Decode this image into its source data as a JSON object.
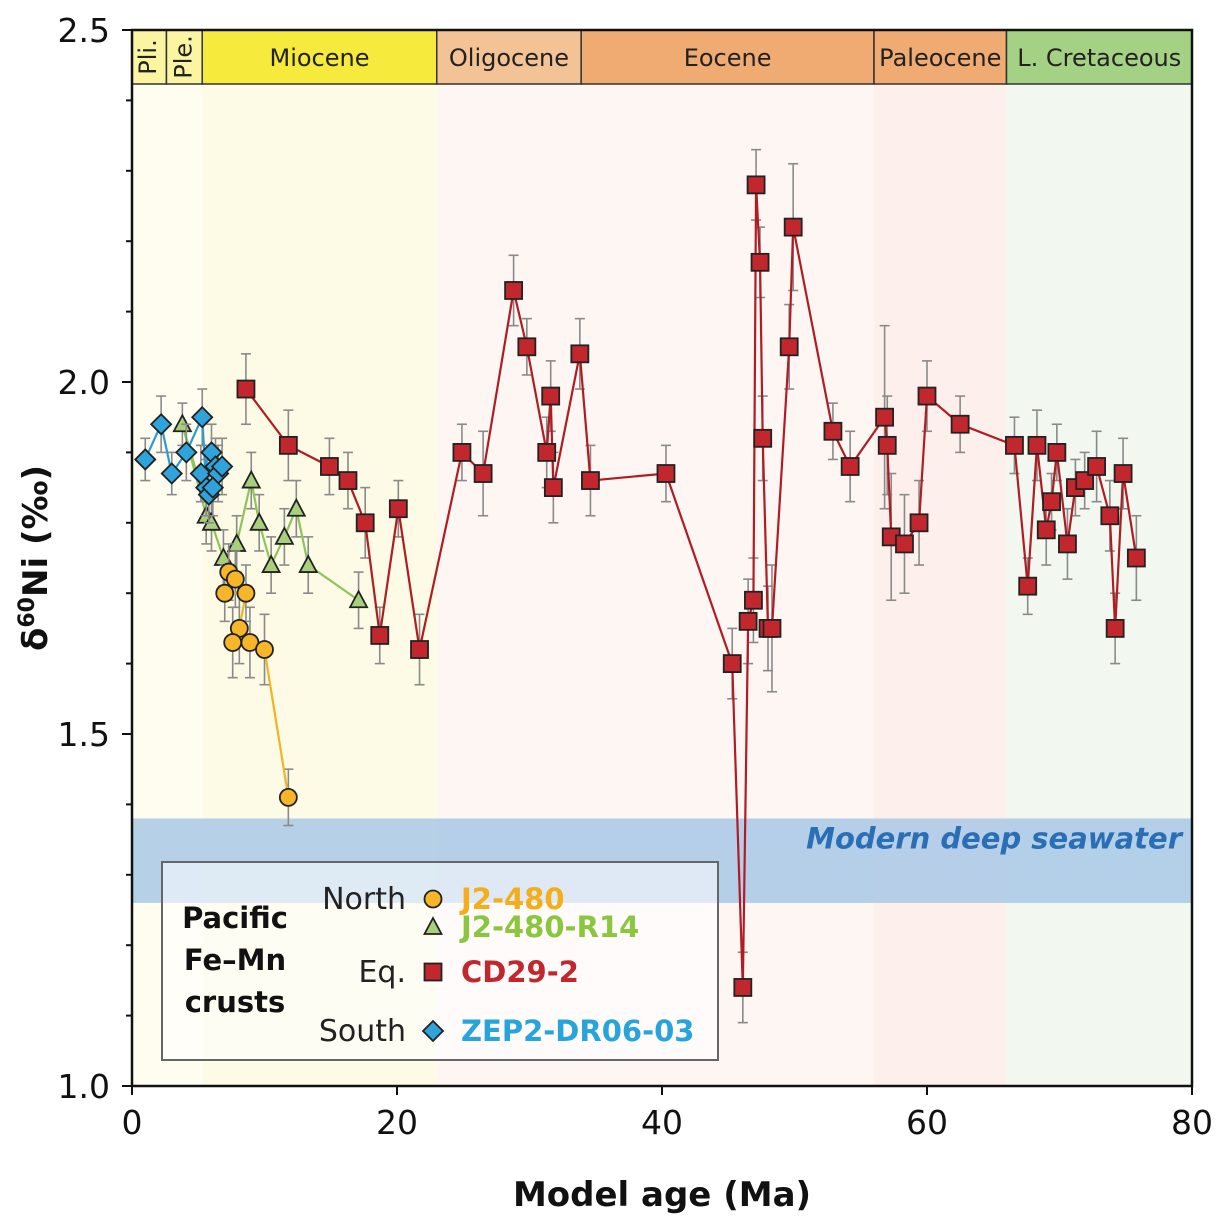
{
  "chart_data": {
    "type": "scatter",
    "xlabel": "Model age (Ma)",
    "ylabel_prefix": "δ",
    "ylabel_sup": "60",
    "ylabel_suffix": "Ni (‰)",
    "xlim": [
      0,
      80
    ],
    "ylim": [
      1.0,
      2.5
    ],
    "xticks": [
      0,
      20,
      40,
      60,
      80
    ],
    "xtick_labels": [
      "0",
      "20",
      "40",
      "60",
      "80"
    ],
    "yticks": [
      1.0,
      1.5,
      2.0,
      2.5
    ],
    "ytick_labels": [
      "1.0",
      "1.5",
      "2.0",
      "2.5"
    ],
    "y_minor_step": 0.1,
    "grid": false,
    "epochs": [
      {
        "name": "Pli.",
        "start": 0,
        "end": 2.6,
        "color": "#fbf4a0",
        "bg": "#fefdf0",
        "vertical": true
      },
      {
        "name": "Ple.",
        "start": 2.6,
        "end": 5.3,
        "color": "#fbf4a0",
        "bg": "#fefdf0",
        "vertical": true
      },
      {
        "name": "Miocene",
        "start": 5.3,
        "end": 23.0,
        "color": "#f6ea3c",
        "bg": "#fdfbe6",
        "vertical": false
      },
      {
        "name": "Oligocene",
        "start": 23.0,
        "end": 33.9,
        "color": "#f3c395",
        "bg": "#fdf6f3",
        "vertical": false
      },
      {
        "name": "Eocene",
        "start": 33.9,
        "end": 56.0,
        "color": "#efab72",
        "bg": "#fdf6f3",
        "vertical": false
      },
      {
        "name": "Paleocene",
        "start": 56.0,
        "end": 66.0,
        "color": "#efab72",
        "bg": "#fdf0ec",
        "vertical": false
      },
      {
        "name": "L. Cretaceous",
        "start": 66.0,
        "end": 80.0,
        "color": "#a5d184",
        "bg": "#f2f8ef",
        "vertical": false
      }
    ],
    "seawater_band": {
      "label": "Modern deep seawater",
      "y_min": 1.26,
      "y_max": 1.38,
      "color": "#a9c8e6",
      "text_color": "#2a6fb5"
    },
    "legend": {
      "group_label": [
        "Pacific",
        "Fe–Mn",
        "crusts"
      ],
      "placement": "bottom-left",
      "entries": [
        {
          "region": "North",
          "series": "J2-480"
        },
        {
          "region": "",
          "series": "J2-480-R14"
        },
        {
          "region": "Eq.",
          "series": "CD29-2"
        },
        {
          "region": "South",
          "series": "ZEP2-DR06-03"
        }
      ]
    },
    "series": [
      {
        "name": "J2-480",
        "marker": "circle",
        "color": "#f7b52a",
        "line_color": "#f0b428",
        "text_color": "#f3ae1a",
        "x": [
          7.3,
          7.8,
          7.0,
          8.6,
          8.1,
          7.6,
          8.9,
          10.0,
          11.8
        ],
        "y": [
          1.73,
          1.72,
          1.7,
          1.7,
          1.65,
          1.63,
          1.63,
          1.62,
          1.41
        ],
        "err": [
          0.04,
          0.04,
          0.04,
          0.04,
          0.05,
          0.05,
          0.05,
          0.05,
          0.04
        ]
      },
      {
        "name": "J2-480-R14",
        "marker": "triangle",
        "color": "#a7cf7c",
        "line_color": "#8ec459",
        "text_color": "#8cc63f",
        "x": [
          5.6,
          3.8,
          6.0,
          6.9,
          7.9,
          9.0,
          9.6,
          10.5,
          11.5,
          12.4,
          13.3,
          17.1
        ],
        "y": [
          1.81,
          1.94,
          1.8,
          1.75,
          1.77,
          1.86,
          1.8,
          1.74,
          1.78,
          1.82,
          1.74,
          1.69
        ],
        "err": [
          0.04,
          0.03,
          0.04,
          0.04,
          0.04,
          0.04,
          0.04,
          0.04,
          0.04,
          0.04,
          0.04,
          0.04
        ]
      },
      {
        "name": "CD29-2",
        "marker": "square",
        "color": "#c1272d",
        "line_color": "#b01c24",
        "text_color": "#c1272d",
        "x": [
          8.6,
          11.8,
          14.9,
          16.3,
          17.6,
          18.7,
          20.1,
          21.7,
          24.9,
          26.5,
          28.8,
          29.8,
          31.3,
          31.6,
          31.8,
          33.8,
          34.6,
          40.3,
          45.3,
          46.1,
          46.5,
          46.9,
          47.1,
          47.4,
          47.6,
          48.0,
          48.3,
          49.6,
          49.9,
          52.9,
          54.2,
          56.8,
          57.0,
          57.3,
          58.3,
          59.4,
          60.0,
          62.5,
          66.6,
          67.6,
          68.3,
          69.0,
          69.4,
          69.8,
          70.6,
          71.2,
          71.9,
          72.8,
          73.8,
          74.2,
          74.8,
          75.8
        ],
        "y": [
          1.99,
          1.91,
          1.88,
          1.86,
          1.8,
          1.64,
          1.82,
          1.62,
          1.9,
          1.87,
          2.13,
          2.05,
          1.9,
          1.98,
          1.85,
          2.04,
          1.86,
          1.87,
          1.6,
          1.14,
          1.66,
          1.69,
          2.28,
          2.17,
          1.92,
          1.65,
          1.65,
          2.05,
          2.22,
          1.93,
          1.88,
          1.95,
          1.91,
          1.78,
          1.77,
          1.8,
          1.98,
          1.94,
          1.91,
          1.71,
          1.91,
          1.79,
          1.83,
          1.9,
          1.77,
          1.85,
          1.86,
          1.88,
          1.81,
          1.65,
          1.87,
          1.75
        ],
        "err": [
          0.05,
          0.05,
          0.04,
          0.04,
          0.05,
          0.04,
          0.04,
          0.05,
          0.04,
          0.06,
          0.05,
          0.04,
          0.05,
          0.05,
          0.05,
          0.05,
          0.05,
          0.04,
          0.05,
          0.05,
          0.06,
          0.06,
          0.05,
          0.05,
          0.06,
          0.06,
          0.09,
          0.06,
          0.09,
          0.04,
          0.05,
          0.13,
          0.07,
          0.09,
          0.07,
          0.06,
          0.05,
          0.04,
          0.04,
          0.04,
          0.05,
          0.05,
          0.04,
          0.04,
          0.05,
          0.04,
          0.04,
          0.05,
          0.05,
          0.05,
          0.05,
          0.06
        ]
      },
      {
        "name": "ZEP2-DR06-03",
        "marker": "diamond",
        "color": "#2fa3dc",
        "line_color": "#2b9bd6",
        "text_color": "#27a4dc",
        "x": [
          1.0,
          2.2,
          3.0,
          4.1,
          5.3,
          5.6,
          5.2,
          6.0,
          6.3,
          6.5,
          6.8,
          5.8,
          6.1
        ],
        "y": [
          1.89,
          1.94,
          1.87,
          1.9,
          1.95,
          1.85,
          1.87,
          1.9,
          1.88,
          1.87,
          1.88,
          1.84,
          1.85
        ],
        "err": [
          0.03,
          0.04,
          0.03,
          0.04,
          0.04,
          0.04,
          0.04,
          0.04,
          0.04,
          0.04,
          0.04,
          0.04,
          0.04
        ]
      }
    ]
  }
}
